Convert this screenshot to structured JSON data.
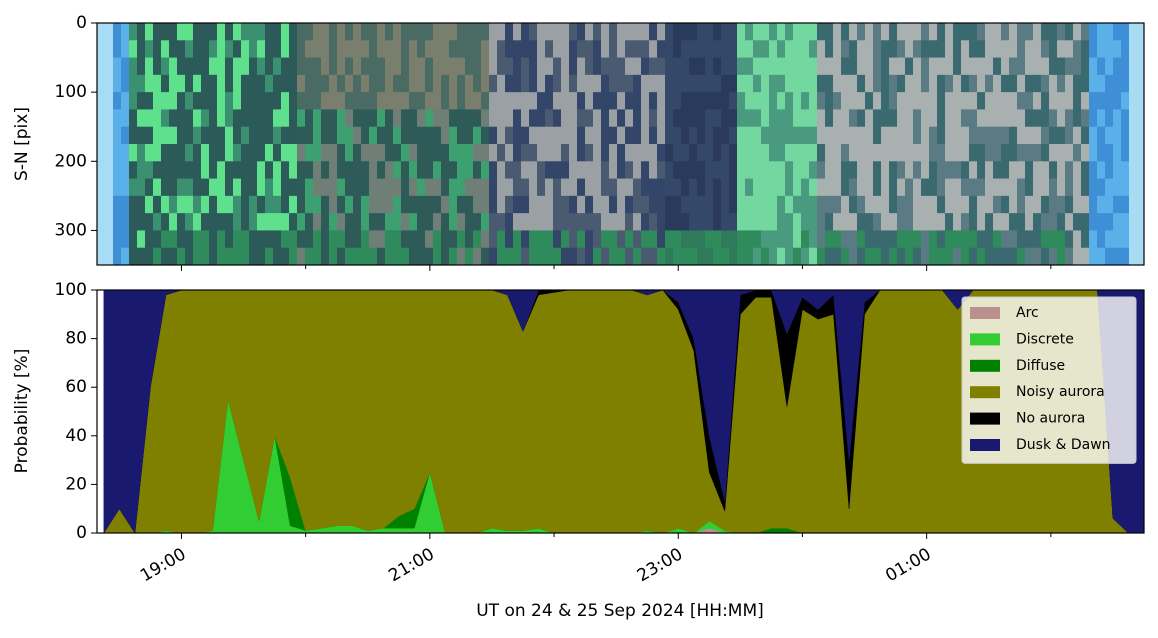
{
  "chart_data": [
    {
      "type": "image",
      "ylabel": "S-N [pix]",
      "ylim": [
        350,
        0
      ],
      "yticks": [
        0,
        100,
        200,
        300
      ]
    },
    {
      "type": "area",
      "stacked": true,
      "xlabel": "UT on 24 & 25 Sep 2024 [HH:MM]",
      "ylabel": "Probability [%]",
      "xlim": [
        18.32,
        26.75
      ],
      "xticks": [
        {
          "value": 19,
          "label": "19:00"
        },
        {
          "value": 21,
          "label": "21:00"
        },
        {
          "value": 23,
          "label": "23:00"
        },
        {
          "value": 25,
          "label": "01:00"
        }
      ],
      "xminorticks": [
        20,
        22,
        24,
        26
      ],
      "ylim": [
        0,
        100
      ],
      "yticks": [
        0,
        20,
        40,
        60,
        80,
        100
      ],
      "legend": "upper right",
      "x": [
        18.375,
        18.5,
        18.625,
        18.75,
        18.875,
        19,
        19.125,
        19.25,
        19.375,
        19.5,
        19.625,
        19.75,
        19.875,
        20,
        20.125,
        20.25,
        20.375,
        20.5,
        20.625,
        20.75,
        20.875,
        21,
        21.125,
        21.25,
        21.375,
        21.5,
        21.625,
        21.75,
        21.875,
        22,
        22.125,
        22.25,
        22.375,
        22.5,
        22.625,
        22.75,
        22.875,
        23,
        23.125,
        23.25,
        23.375,
        23.5,
        23.625,
        23.75,
        23.875,
        24,
        24.125,
        24.25,
        24.375,
        24.5,
        24.625,
        24.75,
        24.875,
        25,
        25.125,
        25.25,
        25.375,
        25.5,
        25.625,
        25.75,
        25.875,
        26,
        26.125,
        26.25,
        26.375,
        26.5,
        26.625,
        26.75
      ],
      "series": [
        {
          "name": "Arc",
          "color": "#bc8f8f",
          "values": [
            0,
            0,
            0,
            0,
            0,
            0,
            0,
            0,
            0,
            0,
            0,
            0,
            0,
            0,
            0,
            0,
            0,
            0,
            0,
            0,
            0,
            0,
            0,
            0,
            0,
            0,
            0,
            0,
            0,
            0,
            0,
            0,
            0,
            0,
            0,
            0,
            0,
            0,
            0,
            2,
            0,
            0,
            0,
            0,
            0,
            0,
            0,
            0,
            0,
            0,
            0,
            0,
            0,
            0,
            0,
            0,
            0,
            0,
            0,
            0,
            0,
            0,
            0,
            0,
            0,
            0,
            0,
            0
          ]
        },
        {
          "name": "Discrete",
          "color": "#32cd32",
          "values": [
            0,
            0,
            0,
            0,
            1,
            0,
            0,
            1,
            55,
            30,
            5,
            40,
            3,
            1,
            2,
            3,
            3,
            1,
            2,
            2,
            2,
            25,
            0,
            0,
            0,
            2,
            1,
            1,
            2,
            0,
            0,
            0,
            0,
            0,
            0,
            1,
            0,
            2,
            0,
            3,
            1,
            0,
            0,
            0,
            0,
            0,
            0,
            0,
            0,
            0,
            0,
            0,
            0,
            0,
            0,
            0,
            0,
            0,
            0,
            0,
            0,
            0,
            0,
            0,
            0,
            0,
            0,
            0
          ]
        },
        {
          "name": "Diffuse",
          "color": "#008000",
          "values": [
            0,
            0,
            0,
            0,
            0,
            0,
            0,
            0,
            0,
            0,
            0,
            0,
            20,
            0,
            0,
            0,
            0,
            0,
            0,
            5,
            8,
            0,
            0,
            0,
            0,
            0,
            0,
            0,
            0,
            0,
            0,
            0,
            0,
            0,
            0,
            0,
            0,
            0,
            0,
            0,
            0,
            0,
            0,
            2,
            2,
            0,
            0,
            0,
            0,
            0,
            0,
            0,
            0,
            0,
            0,
            0,
            0,
            0,
            0,
            0,
            0,
            0,
            0,
            0,
            0,
            0,
            0,
            0
          ]
        },
        {
          "name": "Noisy aurora",
          "color": "#808000",
          "values": [
            0,
            10,
            0,
            60,
            97,
            100,
            100,
            99,
            45,
            70,
            95,
            60,
            77,
            99,
            98,
            97,
            97,
            99,
            98,
            93,
            90,
            75,
            100,
            100,
            100,
            98,
            97,
            82,
            96,
            99,
            100,
            100,
            100,
            100,
            100,
            97,
            100,
            90,
            75,
            20,
            8,
            90,
            97,
            95,
            50,
            92,
            88,
            90,
            10,
            90,
            100,
            100,
            100,
            100,
            100,
            92,
            100,
            100,
            100,
            100,
            100,
            100,
            100,
            100,
            100,
            6,
            0,
            0
          ]
        },
        {
          "name": "No aurora",
          "color": "#000000",
          "values": [
            0,
            0,
            0,
            0,
            0,
            0,
            0,
            0,
            0,
            0,
            0,
            0,
            0,
            0,
            0,
            0,
            0,
            0,
            0,
            0,
            0,
            0,
            0,
            0,
            0,
            0,
            0,
            0,
            2,
            1,
            0,
            0,
            0,
            0,
            0,
            0,
            0,
            3,
            5,
            15,
            4,
            8,
            3,
            3,
            30,
            5,
            4,
            8,
            20,
            5,
            0,
            0,
            0,
            0,
            0,
            0,
            0,
            0,
            0,
            0,
            0,
            0,
            0,
            0,
            0,
            0,
            0,
            0
          ]
        },
        {
          "name": "Dusk & Dawn",
          "color": "#191970",
          "values": [
            100,
            90,
            100,
            40,
            2,
            0,
            0,
            0,
            0,
            0,
            0,
            0,
            0,
            0,
            0,
            0,
            0,
            0,
            0,
            0,
            0,
            0,
            0,
            0,
            0,
            0,
            2,
            17,
            0,
            0,
            0,
            0,
            0,
            0,
            0,
            2,
            0,
            5,
            20,
            60,
            87,
            2,
            0,
            0,
            18,
            3,
            8,
            2,
            70,
            5,
            0,
            0,
            0,
            0,
            0,
            8,
            0,
            0,
            0,
            0,
            0,
            0,
            0,
            0,
            0,
            94,
            100,
            100
          ]
        }
      ]
    }
  ]
}
